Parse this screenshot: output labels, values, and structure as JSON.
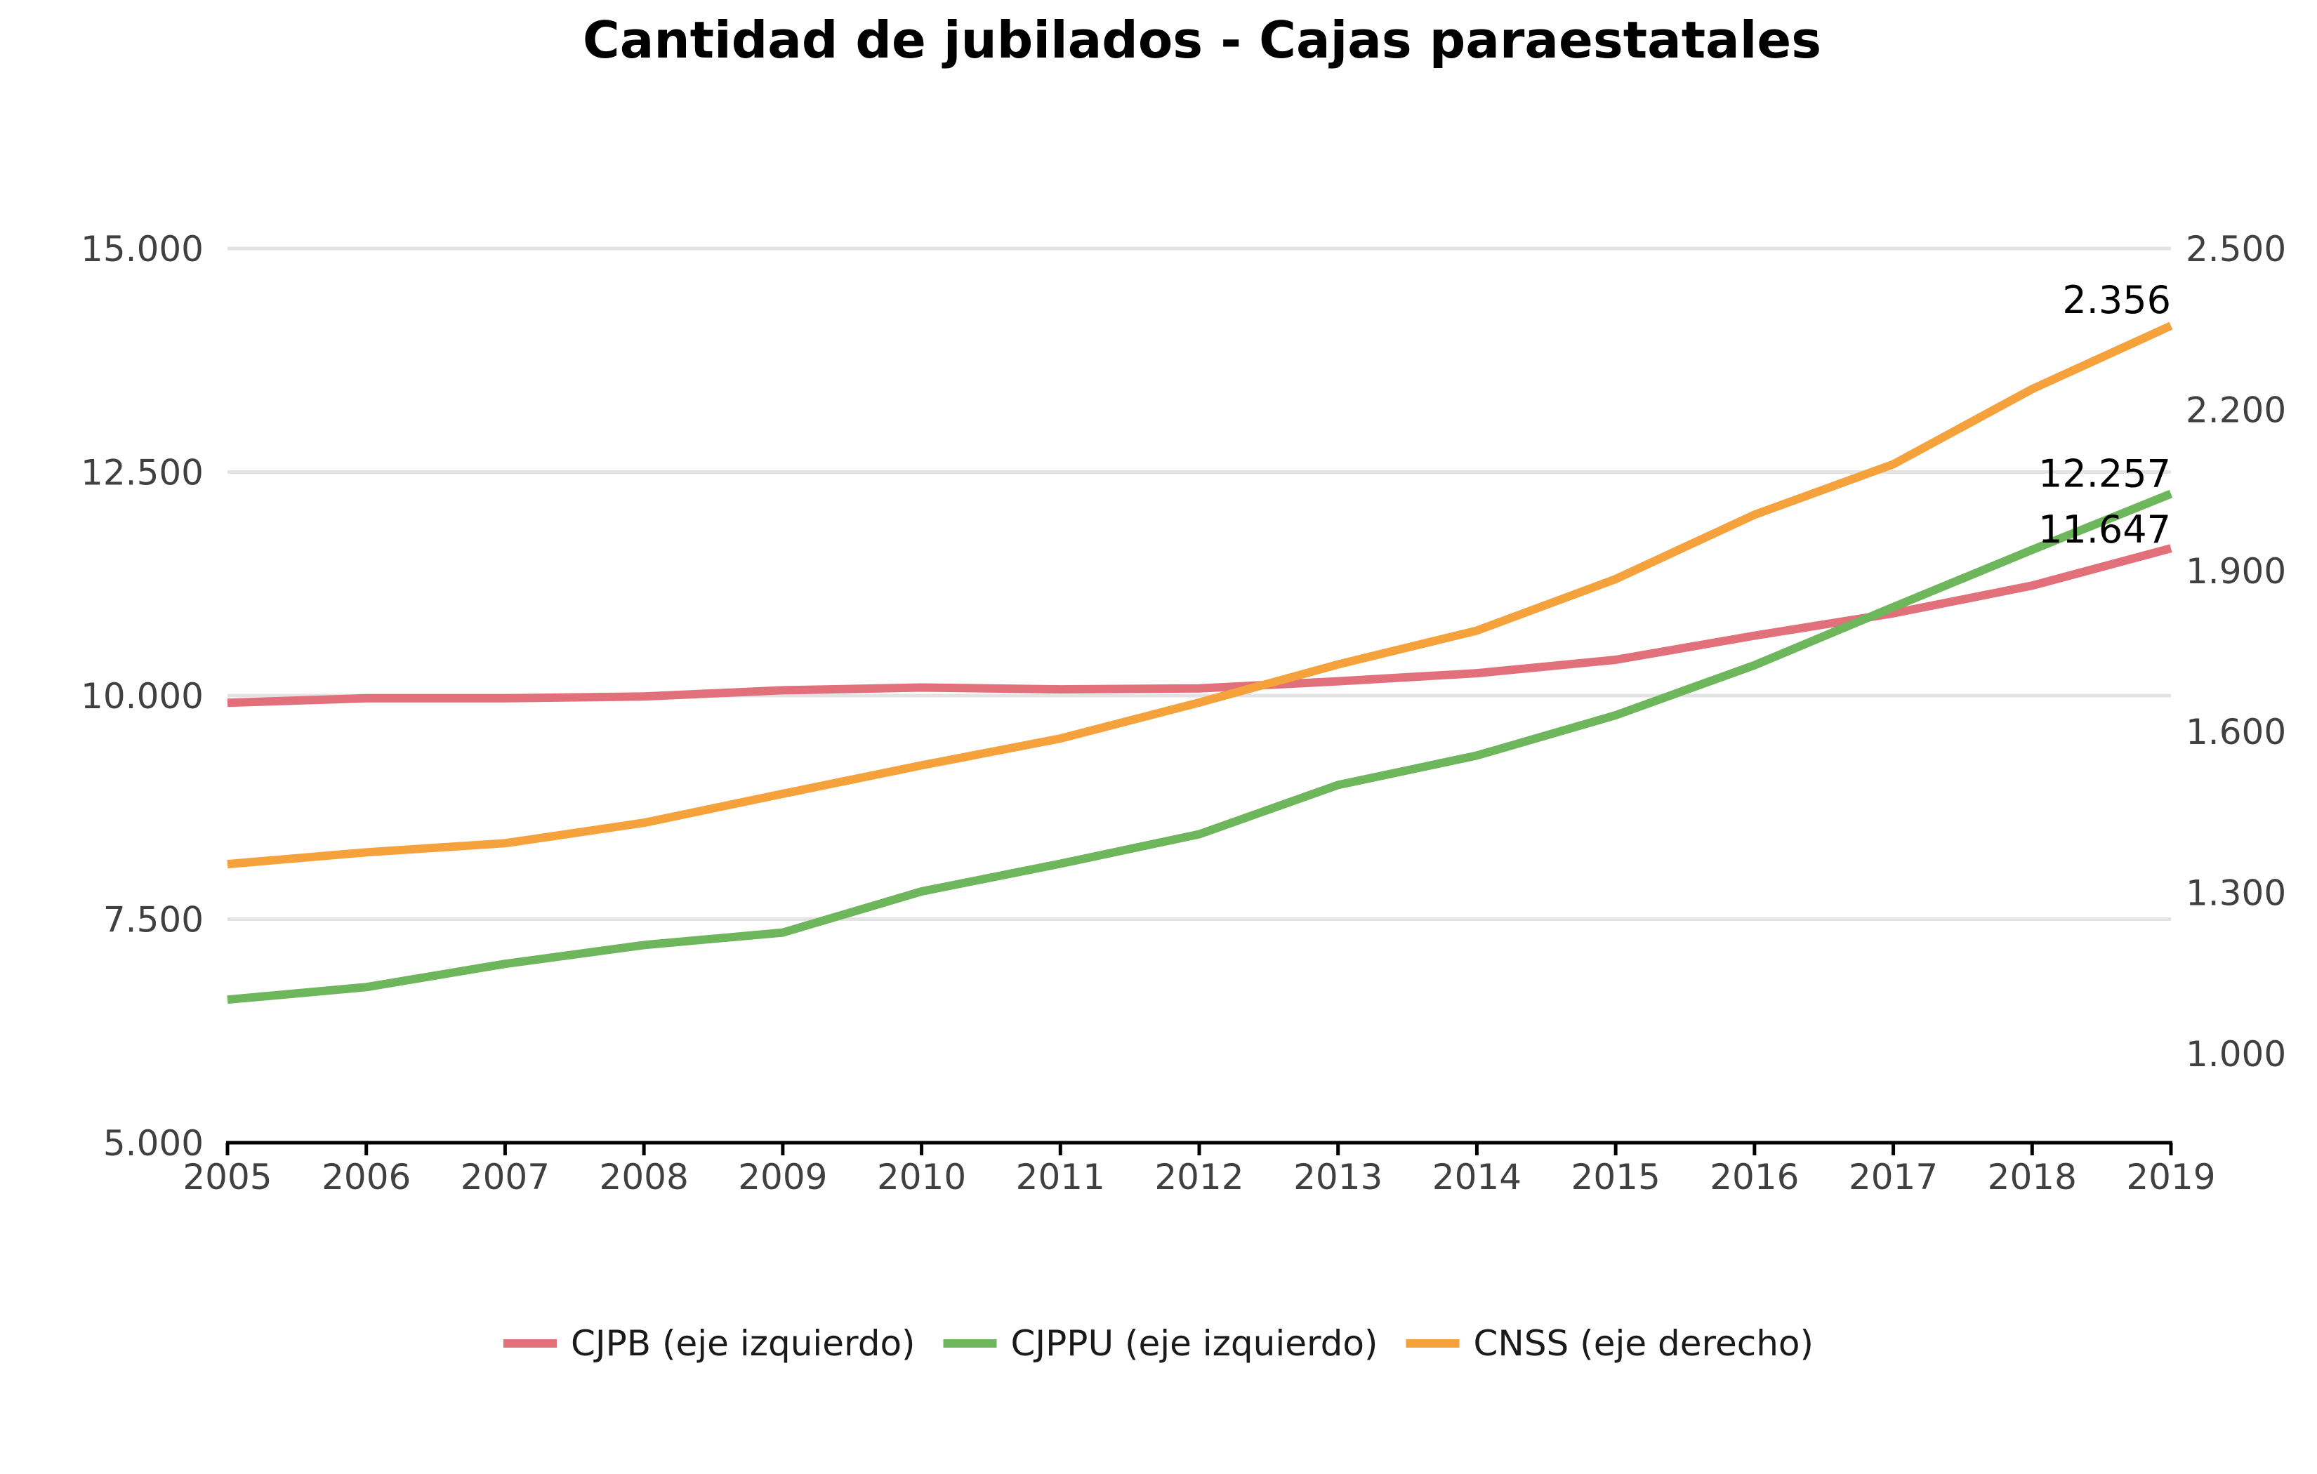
{
  "chart_data": {
    "type": "line",
    "title": "Cantidad de jubilados - Cajas paraestatales",
    "x": [
      "2005",
      "2006",
      "2007",
      "2008",
      "2009",
      "2010",
      "2011",
      "2012",
      "2013",
      "2014",
      "2015",
      "2016",
      "2017",
      "2018",
      "2019"
    ],
    "y_left": {
      "range": [
        5000,
        15000
      ],
      "ticks": [
        5000,
        7500,
        10000,
        12500,
        15000
      ],
      "tick_labels": [
        "5.000",
        "7.500",
        "10.000",
        "12.500",
        "15.000"
      ]
    },
    "y_right": {
      "range": [
        850,
        2500
      ],
      "ticks": [
        1000,
        1300,
        1600,
        1900,
        2200,
        2500
      ],
      "tick_labels": [
        "1.000",
        "1.300",
        "1.600",
        "1.900",
        "2.200",
        "2.500"
      ]
    },
    "grid": true,
    "legend_position": "bottom",
    "series": [
      {
        "name": "CJPB (eje izquierdo)",
        "axis": "left",
        "color": "#e2707a",
        "values": [
          9920,
          9970,
          9970,
          9990,
          10060,
          10090,
          10070,
          10080,
          10160,
          10250,
          10400,
          10670,
          10920,
          11230,
          11647
        ],
        "end_label": "11.647"
      },
      {
        "name": "CJPPU (eje izquierdo)",
        "axis": "left",
        "color": "#6db65b",
        "values": [
          6600,
          6740,
          7000,
          7210,
          7350,
          7810,
          8120,
          8450,
          9000,
          9330,
          9780,
          10340,
          10990,
          11630,
          12257
        ],
        "end_label": "12.257"
      },
      {
        "name": "CNSS (eje derecho)",
        "axis": "right",
        "color": "#f5a13c",
        "values": [
          1353,
          1375,
          1392,
          1430,
          1484,
          1537,
          1587,
          1654,
          1725,
          1788,
          1884,
          2004,
          2098,
          2238,
          2356
        ],
        "end_label": "2.356"
      }
    ]
  }
}
